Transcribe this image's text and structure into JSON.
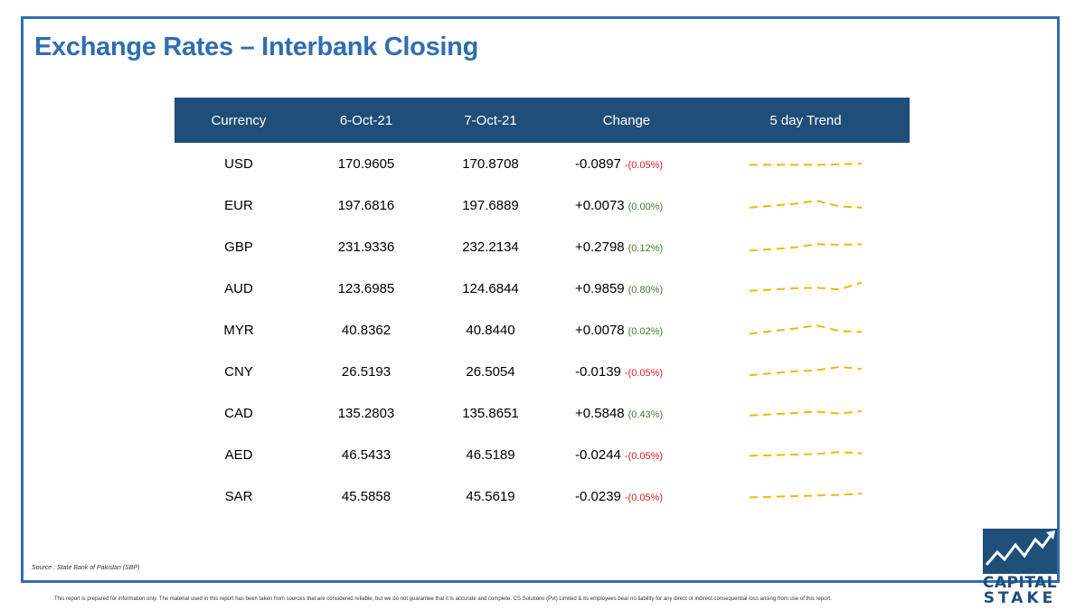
{
  "title": "Exchange Rates – Interbank Closing",
  "table": {
    "headers": [
      "Currency",
      "6-Oct-21",
      "7-Oct-21",
      "Change",
      "5 day Trend"
    ],
    "rows": [
      {
        "currency": "USD",
        "d1": "170.9605",
        "d2": "170.8708",
        "change": "-0.0897",
        "pct": "-(0.05%)",
        "direction": "neg",
        "trend": [
          0.4,
          0.4,
          0.4,
          0.4,
          0.45,
          0.5
        ]
      },
      {
        "currency": "EUR",
        "d1": "197.6816",
        "d2": "197.6889",
        "change": "+0.0073",
        "pct": "(0.00%)",
        "direction": "pos",
        "trend": [
          0.3,
          0.45,
          0.6,
          0.85,
          0.4,
          0.3
        ]
      },
      {
        "currency": "GBP",
        "d1": "231.9336",
        "d2": "232.2134",
        "change": "+0.2798",
        "pct": "(0.12%)",
        "direction": "pos",
        "trend": [
          0.2,
          0.3,
          0.45,
          0.7,
          0.65,
          0.7
        ]
      },
      {
        "currency": "AUD",
        "d1": "123.6985",
        "d2": "124.6844",
        "change": "+0.9859",
        "pct": "(0.80%)",
        "direction": "pos",
        "trend": [
          0.3,
          0.4,
          0.5,
          0.55,
          0.4,
          0.95
        ]
      },
      {
        "currency": "MYR",
        "d1": "40.8362",
        "d2": "40.8440",
        "change": "+0.0078",
        "pct": "(0.02%)",
        "direction": "pos",
        "trend": [
          0.2,
          0.4,
          0.6,
          0.85,
          0.4,
          0.35
        ]
      },
      {
        "currency": "CNY",
        "d1": "26.5193",
        "d2": "26.5054",
        "change": "-0.0139",
        "pct": "-(0.05%)",
        "direction": "neg",
        "trend": [
          0.2,
          0.35,
          0.5,
          0.6,
          0.85,
          0.7
        ]
      },
      {
        "currency": "CAD",
        "d1": "135.2803",
        "d2": "135.8651",
        "change": "+0.5848",
        "pct": "(0.43%)",
        "direction": "pos",
        "trend": [
          0.3,
          0.4,
          0.5,
          0.6,
          0.45,
          0.65
        ]
      },
      {
        "currency": "AED",
        "d1": "46.5433",
        "d2": "46.5189",
        "change": "-0.0244",
        "pct": "-(0.05%)",
        "direction": "neg",
        "trend": [
          0.4,
          0.45,
          0.5,
          0.55,
          0.7,
          0.6
        ]
      },
      {
        "currency": "SAR",
        "d1": "45.5858",
        "d2": "45.5619",
        "change": "-0.0239",
        "pct": "-(0.05%)",
        "direction": "neg",
        "trend": [
          0.4,
          0.45,
          0.5,
          0.55,
          0.6,
          0.7
        ]
      }
    ]
  },
  "source": "Source : State Bank of Pakistan (SBP)",
  "disclaimer": "This report is prepared for information only. The material used in this report has been taken from sources that are considered reliable, but we do not guarantee that it is accurate and complete. CS Solutions (Pvt) Limited & its employees bear no liability for any direct or indirect consequential loss arising from use of this report.",
  "logo": {
    "line1": "CAPITAL",
    "line2": "STAKE"
  },
  "colors": {
    "accent": "#2f6eb0",
    "header": "#1f4e79",
    "negative": "#e01b1b",
    "positive": "#3f7d2e",
    "sparkline": "#f5b800"
  }
}
